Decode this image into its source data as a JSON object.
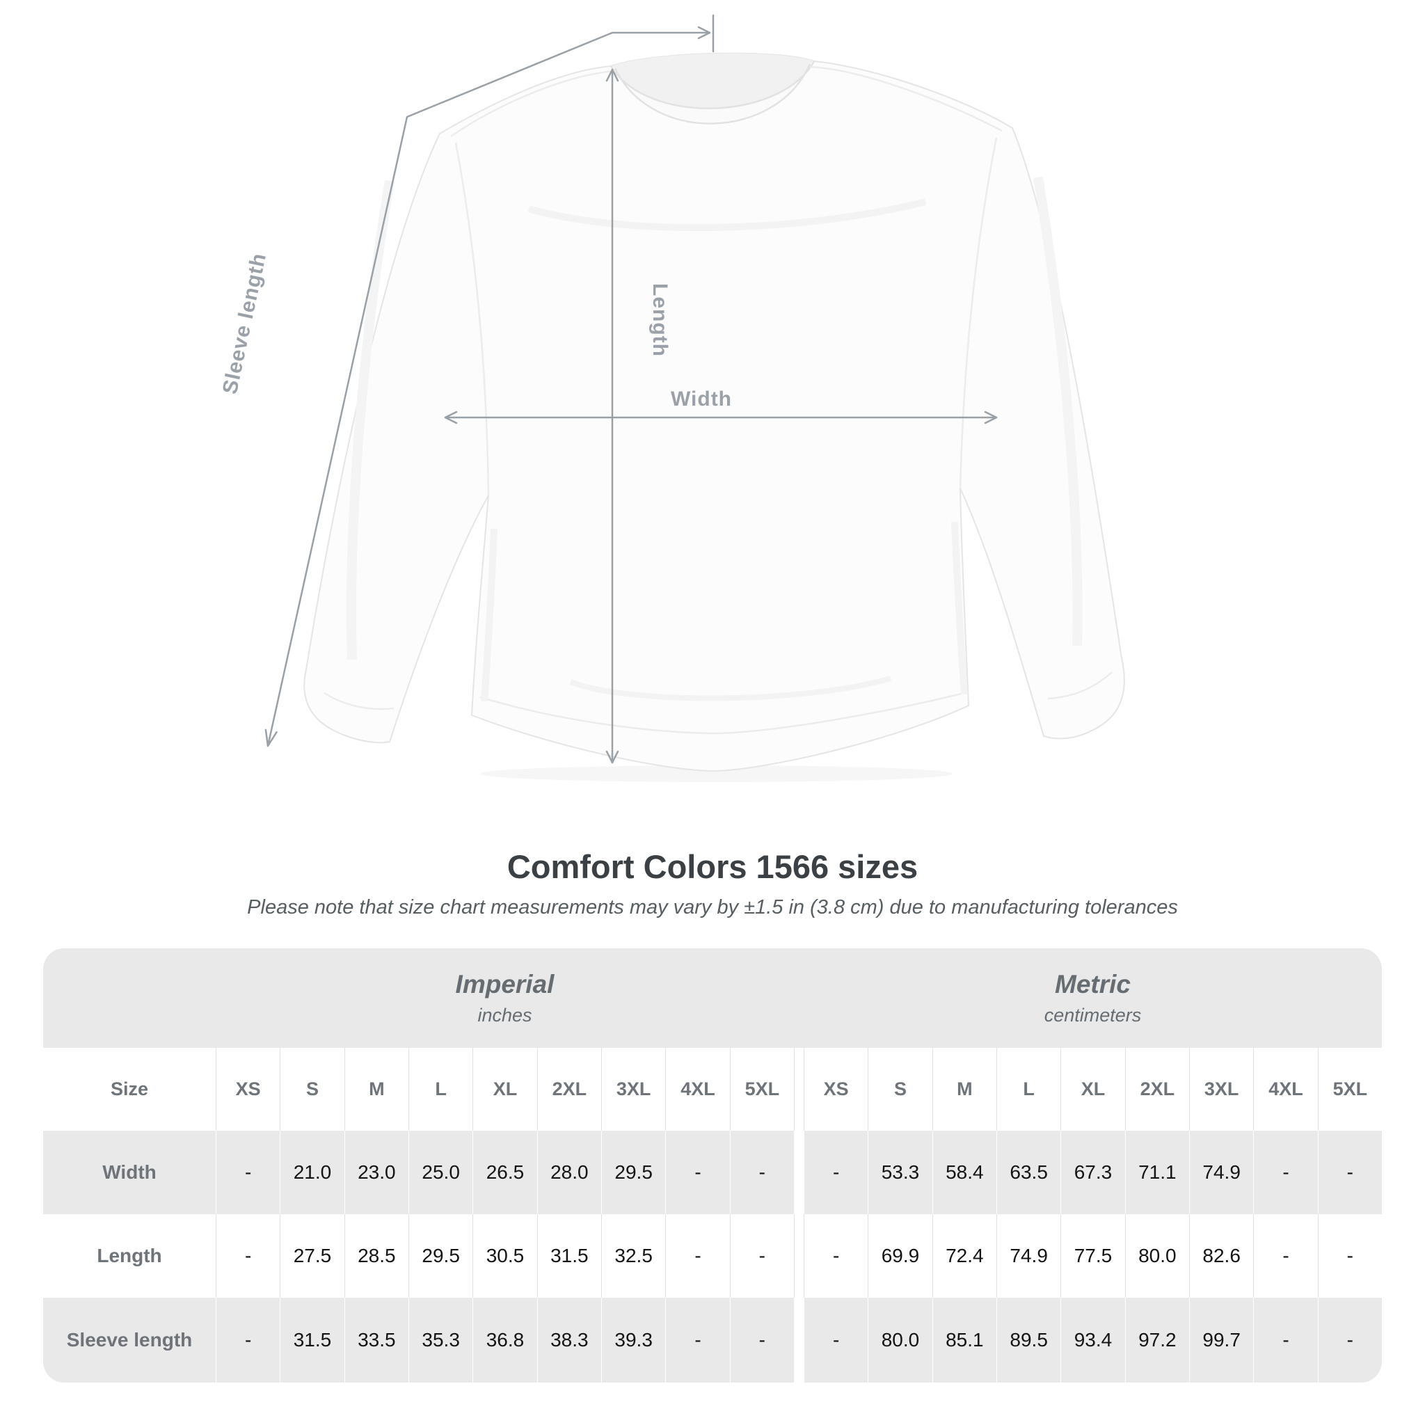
{
  "title": "Comfort Colors 1566 sizes",
  "subtitle": "Please note that size chart measurements may vary by ±1.5 in (3.8 cm) due to manufacturing tolerances",
  "diagram": {
    "garment": "white crewneck sweatshirt flat-lay mockup",
    "labels": {
      "length": "Length",
      "width": "Width",
      "sleeve_length": "Sleeve length"
    },
    "annotation_color": "#9aa0a6"
  },
  "chart_data": {
    "type": "table",
    "title": "Comfort Colors 1566 sizes",
    "size_header": "Size",
    "unit_groups": [
      {
        "label": "Imperial",
        "sublabel": "inches"
      },
      {
        "label": "Metric",
        "sublabel": "centimeters"
      }
    ],
    "sizes": [
      "XS",
      "S",
      "M",
      "L",
      "XL",
      "2XL",
      "3XL",
      "4XL",
      "5XL"
    ],
    "rows": [
      {
        "label": "Width",
        "imperial": [
          "-",
          "21.0",
          "23.0",
          "25.0",
          "26.5",
          "28.0",
          "29.5",
          "-",
          "-"
        ],
        "metric": [
          "-",
          "53.3",
          "58.4",
          "63.5",
          "67.3",
          "71.1",
          "74.9",
          "-",
          "-"
        ]
      },
      {
        "label": "Length",
        "imperial": [
          "-",
          "27.5",
          "28.5",
          "29.5",
          "30.5",
          "31.5",
          "32.5",
          "-",
          "-"
        ],
        "metric": [
          "-",
          "69.9",
          "72.4",
          "74.9",
          "77.5",
          "80.0",
          "82.6",
          "-",
          "-"
        ]
      },
      {
        "label": "Sleeve length",
        "imperial": [
          "-",
          "31.5",
          "33.5",
          "35.3",
          "36.8",
          "38.3",
          "39.3",
          "-",
          "-"
        ],
        "metric": [
          "-",
          "80.0",
          "85.1",
          "89.5",
          "93.4",
          "97.2",
          "99.7",
          "-",
          "-"
        ]
      }
    ]
  },
  "colors": {
    "table_band": "#e9e9e9",
    "row_stripe": "#e9e9e9",
    "header_text": "#6e7479",
    "value_text": "#141414",
    "title_text": "#3b4045",
    "annotation": "#9aa0a6"
  }
}
